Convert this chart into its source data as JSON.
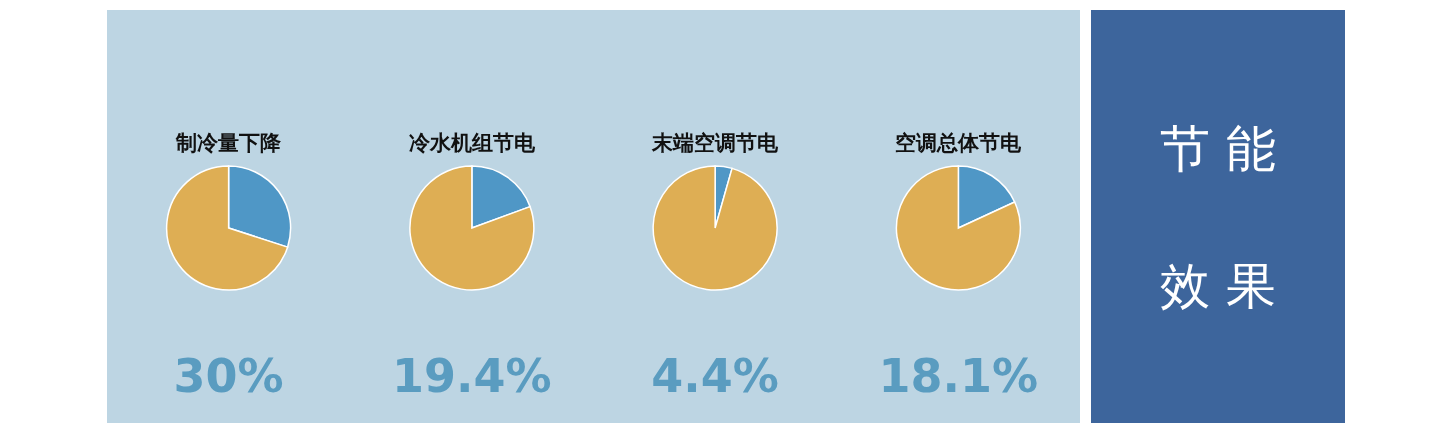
{
  "chart_data": [
    {
      "type": "pie",
      "title": "制冷量下降",
      "categories": [
        null,
        null
      ],
      "values": [
        30,
        70
      ],
      "colors": [
        "#4f97c6",
        "#deae54"
      ],
      "annotations": [
        "30%"
      ]
    },
    {
      "type": "pie",
      "title": "冷水机组节电",
      "categories": [
        null,
        null
      ],
      "values": [
        19.4,
        80.6
      ],
      "colors": [
        "#4f97c6",
        "#deae54"
      ],
      "annotations": [
        "19.4%"
      ]
    },
    {
      "type": "pie",
      "title": "末端空调节电",
      "categories": [
        null,
        null
      ],
      "values": [
        4.4,
        95.6
      ],
      "colors": [
        "#4f97c6",
        "#deae54"
      ],
      "annotations": [
        "4.4%"
      ]
    },
    {
      "type": "pie",
      "title": "空调总体节电",
      "categories": [
        null,
        null
      ],
      "values": [
        18.1,
        81.9
      ],
      "colors": [
        "#4f97c6",
        "#deae54"
      ],
      "annotations": [
        "18.1%"
      ]
    },
    {
      "type": "other",
      "annotations": [
        "节 能",
        "效 果"
      ]
    }
  ]
}
